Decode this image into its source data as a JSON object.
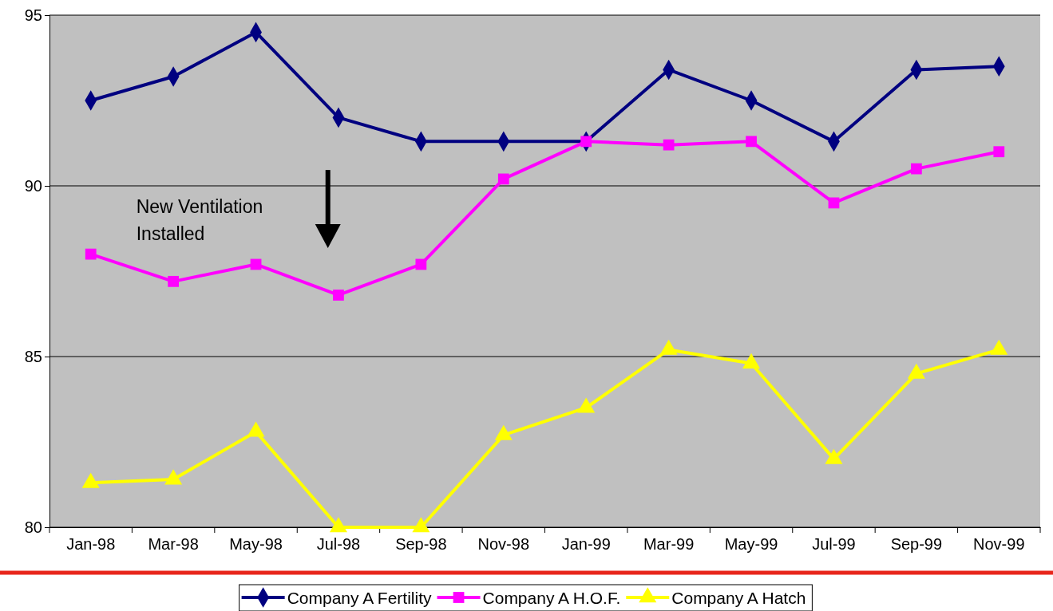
{
  "chart_data": {
    "type": "line",
    "categories": [
      "Jan-98",
      "Mar-98",
      "May-98",
      "Jul-98",
      "Sep-98",
      "Nov-98",
      "Jan-99",
      "Mar-99",
      "May-99",
      "Jul-99",
      "Sep-99",
      "Nov-99"
    ],
    "series": [
      {
        "name": "Company A Fertility",
        "color": "#000080",
        "marker": "diamond",
        "values": [
          92.5,
          93.2,
          94.5,
          92.0,
          91.3,
          91.3,
          91.3,
          93.4,
          92.5,
          91.3,
          93.4,
          93.5
        ]
      },
      {
        "name": "Company A H.O.F.",
        "color": "#ff00ff",
        "marker": "square",
        "values": [
          88.0,
          87.2,
          87.7,
          86.8,
          87.7,
          90.2,
          91.3,
          91.2,
          91.3,
          89.5,
          90.5,
          91.0
        ]
      },
      {
        "name": "Company A Hatch",
        "color": "#ffff00",
        "marker": "triangle",
        "values": [
          81.3,
          81.4,
          82.8,
          80.0,
          80.0,
          82.7,
          83.5,
          85.2,
          84.8,
          82.0,
          84.5,
          85.2
        ]
      }
    ],
    "ylim": [
      80,
      95
    ],
    "yticks": [
      80,
      85,
      90,
      95
    ],
    "grid": "y",
    "legend": "bottom",
    "line_style": "solid",
    "annotations": [
      "New Ventilation\nInstalled"
    ]
  }
}
